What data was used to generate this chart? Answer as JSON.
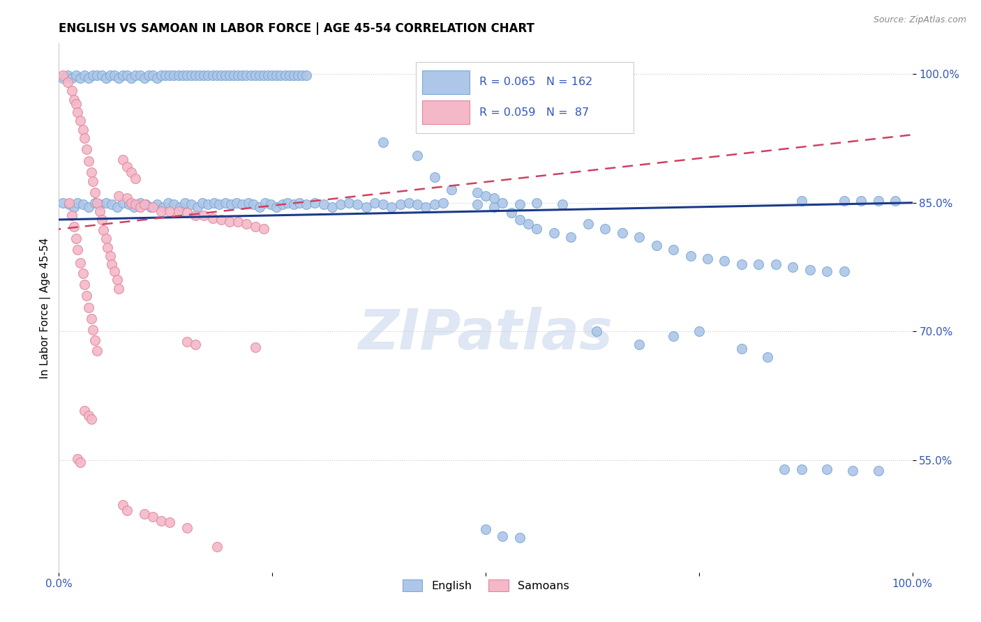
{
  "title": "ENGLISH VS SAMOAN IN LABOR FORCE | AGE 45-54 CORRELATION CHART",
  "source": "Source: ZipAtlas.com",
  "ylabel": "In Labor Force | Age 45-54",
  "xlim": [
    0.0,
    1.0
  ],
  "ylim": [
    0.42,
    1.035
  ],
  "yticks": [
    0.55,
    0.7,
    0.85,
    1.0
  ],
  "ytick_labels": [
    "55.0%",
    "70.0%",
    "85.0%",
    "100.0%"
  ],
  "english_R": 0.065,
  "english_N": 162,
  "samoan_R": 0.059,
  "samoan_N": 87,
  "english_color": "#aec6e8",
  "english_edge": "#7aaad4",
  "samoan_color": "#f4b8c8",
  "samoan_edge": "#e088a0",
  "trend_english_color": "#1a3a8a",
  "trend_samoan_color": "#d04060",
  "watermark": "ZIPatlas",
  "watermark_color": "#c8d8ec",
  "english_points": [
    [
      0.005,
      0.995
    ],
    [
      0.01,
      0.998
    ],
    [
      0.015,
      0.995
    ],
    [
      0.02,
      0.998
    ],
    [
      0.025,
      0.995
    ],
    [
      0.03,
      0.998
    ],
    [
      0.035,
      0.995
    ],
    [
      0.04,
      0.998
    ],
    [
      0.045,
      0.998
    ],
    [
      0.05,
      0.998
    ],
    [
      0.055,
      0.995
    ],
    [
      0.06,
      0.998
    ],
    [
      0.065,
      0.998
    ],
    [
      0.07,
      0.995
    ],
    [
      0.075,
      0.998
    ],
    [
      0.08,
      0.998
    ],
    [
      0.085,
      0.995
    ],
    [
      0.09,
      0.998
    ],
    [
      0.095,
      0.998
    ],
    [
      0.1,
      0.995
    ],
    [
      0.105,
      0.998
    ],
    [
      0.11,
      0.998
    ],
    [
      0.115,
      0.995
    ],
    [
      0.12,
      0.998
    ],
    [
      0.125,
      0.998
    ],
    [
      0.13,
      0.998
    ],
    [
      0.135,
      0.998
    ],
    [
      0.14,
      0.998
    ],
    [
      0.145,
      0.998
    ],
    [
      0.15,
      0.998
    ],
    [
      0.155,
      0.998
    ],
    [
      0.16,
      0.998
    ],
    [
      0.165,
      0.998
    ],
    [
      0.17,
      0.998
    ],
    [
      0.175,
      0.998
    ],
    [
      0.18,
      0.998
    ],
    [
      0.185,
      0.998
    ],
    [
      0.19,
      0.998
    ],
    [
      0.195,
      0.998
    ],
    [
      0.2,
      0.998
    ],
    [
      0.205,
      0.998
    ],
    [
      0.21,
      0.998
    ],
    [
      0.215,
      0.998
    ],
    [
      0.22,
      0.998
    ],
    [
      0.225,
      0.998
    ],
    [
      0.23,
      0.998
    ],
    [
      0.235,
      0.998
    ],
    [
      0.24,
      0.998
    ],
    [
      0.245,
      0.998
    ],
    [
      0.25,
      0.998
    ],
    [
      0.255,
      0.998
    ],
    [
      0.26,
      0.998
    ],
    [
      0.265,
      0.998
    ],
    [
      0.27,
      0.998
    ],
    [
      0.275,
      0.998
    ],
    [
      0.28,
      0.998
    ],
    [
      0.285,
      0.998
    ],
    [
      0.29,
      0.998
    ],
    [
      0.005,
      0.85
    ],
    [
      0.012,
      0.848
    ],
    [
      0.018,
      0.845
    ],
    [
      0.022,
      0.85
    ],
    [
      0.028,
      0.848
    ],
    [
      0.035,
      0.845
    ],
    [
      0.042,
      0.85
    ],
    [
      0.048,
      0.848
    ],
    [
      0.055,
      0.85
    ],
    [
      0.062,
      0.848
    ],
    [
      0.068,
      0.845
    ],
    [
      0.075,
      0.85
    ],
    [
      0.082,
      0.848
    ],
    [
      0.088,
      0.845
    ],
    [
      0.095,
      0.85
    ],
    [
      0.102,
      0.848
    ],
    [
      0.108,
      0.845
    ],
    [
      0.115,
      0.848
    ],
    [
      0.122,
      0.845
    ],
    [
      0.128,
      0.85
    ],
    [
      0.135,
      0.848
    ],
    [
      0.142,
      0.845
    ],
    [
      0.148,
      0.85
    ],
    [
      0.155,
      0.848
    ],
    [
      0.162,
      0.845
    ],
    [
      0.168,
      0.85
    ],
    [
      0.175,
      0.848
    ],
    [
      0.182,
      0.85
    ],
    [
      0.188,
      0.848
    ],
    [
      0.195,
      0.85
    ],
    [
      0.202,
      0.848
    ],
    [
      0.208,
      0.85
    ],
    [
      0.215,
      0.848
    ],
    [
      0.222,
      0.85
    ],
    [
      0.228,
      0.848
    ],
    [
      0.235,
      0.845
    ],
    [
      0.242,
      0.85
    ],
    [
      0.248,
      0.848
    ],
    [
      0.255,
      0.845
    ],
    [
      0.262,
      0.848
    ],
    [
      0.268,
      0.85
    ],
    [
      0.275,
      0.848
    ],
    [
      0.282,
      0.85
    ],
    [
      0.29,
      0.848
    ],
    [
      0.3,
      0.85
    ],
    [
      0.31,
      0.848
    ],
    [
      0.32,
      0.845
    ],
    [
      0.33,
      0.848
    ],
    [
      0.34,
      0.85
    ],
    [
      0.35,
      0.848
    ],
    [
      0.36,
      0.845
    ],
    [
      0.37,
      0.85
    ],
    [
      0.38,
      0.848
    ],
    [
      0.39,
      0.845
    ],
    [
      0.4,
      0.848
    ],
    [
      0.41,
      0.85
    ],
    [
      0.42,
      0.848
    ],
    [
      0.43,
      0.845
    ],
    [
      0.44,
      0.848
    ],
    [
      0.45,
      0.85
    ],
    [
      0.49,
      0.848
    ],
    [
      0.51,
      0.845
    ],
    [
      0.54,
      0.848
    ],
    [
      0.56,
      0.85
    ],
    [
      0.59,
      0.848
    ],
    [
      0.38,
      0.92
    ],
    [
      0.42,
      0.905
    ],
    [
      0.44,
      0.88
    ],
    [
      0.46,
      0.865
    ],
    [
      0.49,
      0.862
    ],
    [
      0.5,
      0.858
    ],
    [
      0.51,
      0.855
    ],
    [
      0.52,
      0.85
    ],
    [
      0.53,
      0.838
    ],
    [
      0.54,
      0.83
    ],
    [
      0.55,
      0.825
    ],
    [
      0.56,
      0.82
    ],
    [
      0.58,
      0.815
    ],
    [
      0.6,
      0.81
    ],
    [
      0.62,
      0.825
    ],
    [
      0.64,
      0.82
    ],
    [
      0.66,
      0.815
    ],
    [
      0.68,
      0.81
    ],
    [
      0.7,
      0.8
    ],
    [
      0.72,
      0.795
    ],
    [
      0.74,
      0.788
    ],
    [
      0.76,
      0.785
    ],
    [
      0.78,
      0.782
    ],
    [
      0.8,
      0.778
    ],
    [
      0.82,
      0.778
    ],
    [
      0.84,
      0.778
    ],
    [
      0.86,
      0.775
    ],
    [
      0.88,
      0.772
    ],
    [
      0.9,
      0.77
    ],
    [
      0.92,
      0.77
    ],
    [
      0.87,
      0.852
    ],
    [
      0.92,
      0.852
    ],
    [
      0.94,
      0.852
    ],
    [
      0.96,
      0.852
    ],
    [
      0.98,
      0.852
    ],
    [
      0.63,
      0.7
    ],
    [
      0.68,
      0.685
    ],
    [
      0.72,
      0.695
    ],
    [
      0.75,
      0.7
    ],
    [
      0.8,
      0.68
    ],
    [
      0.83,
      0.67
    ],
    [
      0.85,
      0.54
    ],
    [
      0.87,
      0.54
    ],
    [
      0.9,
      0.54
    ],
    [
      0.93,
      0.538
    ],
    [
      0.96,
      0.538
    ],
    [
      0.5,
      0.47
    ],
    [
      0.52,
      0.462
    ],
    [
      0.54,
      0.46
    ]
  ],
  "samoan_points": [
    [
      0.005,
      0.998
    ],
    [
      0.01,
      0.99
    ],
    [
      0.015,
      0.98
    ],
    [
      0.018,
      0.97
    ],
    [
      0.02,
      0.965
    ],
    [
      0.022,
      0.955
    ],
    [
      0.025,
      0.945
    ],
    [
      0.028,
      0.935
    ],
    [
      0.03,
      0.925
    ],
    [
      0.032,
      0.912
    ],
    [
      0.035,
      0.898
    ],
    [
      0.038,
      0.885
    ],
    [
      0.04,
      0.875
    ],
    [
      0.042,
      0.862
    ],
    [
      0.045,
      0.85
    ],
    [
      0.048,
      0.84
    ],
    [
      0.05,
      0.83
    ],
    [
      0.052,
      0.818
    ],
    [
      0.055,
      0.808
    ],
    [
      0.057,
      0.798
    ],
    [
      0.06,
      0.788
    ],
    [
      0.062,
      0.778
    ],
    [
      0.065,
      0.77
    ],
    [
      0.068,
      0.76
    ],
    [
      0.07,
      0.75
    ],
    [
      0.012,
      0.85
    ],
    [
      0.015,
      0.835
    ],
    [
      0.018,
      0.822
    ],
    [
      0.02,
      0.808
    ],
    [
      0.022,
      0.795
    ],
    [
      0.025,
      0.78
    ],
    [
      0.028,
      0.768
    ],
    [
      0.03,
      0.755
    ],
    [
      0.032,
      0.742
    ],
    [
      0.035,
      0.728
    ],
    [
      0.038,
      0.715
    ],
    [
      0.04,
      0.702
    ],
    [
      0.042,
      0.69
    ],
    [
      0.045,
      0.678
    ],
    [
      0.07,
      0.858
    ],
    [
      0.08,
      0.855
    ],
    [
      0.085,
      0.85
    ],
    [
      0.09,
      0.848
    ],
    [
      0.095,
      0.845
    ],
    [
      0.1,
      0.848
    ],
    [
      0.11,
      0.845
    ],
    [
      0.12,
      0.84
    ],
    [
      0.13,
      0.84
    ],
    [
      0.14,
      0.84
    ],
    [
      0.15,
      0.838
    ],
    [
      0.16,
      0.835
    ],
    [
      0.17,
      0.835
    ],
    [
      0.18,
      0.832
    ],
    [
      0.19,
      0.83
    ],
    [
      0.2,
      0.828
    ],
    [
      0.21,
      0.828
    ],
    [
      0.22,
      0.825
    ],
    [
      0.23,
      0.822
    ],
    [
      0.24,
      0.82
    ],
    [
      0.075,
      0.9
    ],
    [
      0.08,
      0.892
    ],
    [
      0.085,
      0.885
    ],
    [
      0.09,
      0.878
    ],
    [
      0.15,
      0.688
    ],
    [
      0.16,
      0.685
    ],
    [
      0.23,
      0.682
    ],
    [
      0.03,
      0.608
    ],
    [
      0.035,
      0.602
    ],
    [
      0.038,
      0.598
    ],
    [
      0.022,
      0.552
    ],
    [
      0.025,
      0.548
    ],
    [
      0.075,
      0.498
    ],
    [
      0.08,
      0.492
    ],
    [
      0.1,
      0.488
    ],
    [
      0.11,
      0.485
    ],
    [
      0.12,
      0.48
    ],
    [
      0.13,
      0.478
    ],
    [
      0.15,
      0.472
    ],
    [
      0.185,
      0.45
    ]
  ]
}
